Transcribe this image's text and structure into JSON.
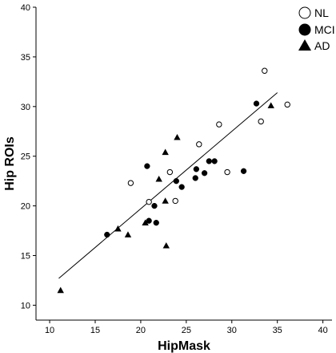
{
  "chart_data": {
    "type": "scatter",
    "title": "",
    "xlabel": "HipMask",
    "ylabel": "Hip ROIs",
    "xlim": [
      8.5,
      41
    ],
    "ylim": [
      8.5,
      40
    ],
    "xticks": [
      10,
      15,
      20,
      25,
      30,
      35,
      40
    ],
    "yticks": [
      10,
      15,
      20,
      25,
      30,
      35,
      40
    ],
    "grid": false,
    "legend": "top-right",
    "series": [
      {
        "name": "NL",
        "marker": "open-circle",
        "points": [
          [
            33.6,
            33.6
          ],
          [
            36.1,
            30.2
          ],
          [
            33.2,
            28.5
          ],
          [
            28.6,
            28.2
          ],
          [
            26.4,
            26.2
          ],
          [
            18.9,
            22.3
          ],
          [
            23.2,
            23.4
          ],
          [
            29.5,
            23.4
          ],
          [
            20.9,
            20.4
          ],
          [
            23.8,
            20.5
          ]
        ]
      },
      {
        "name": "MCI",
        "marker": "filled-circle",
        "points": [
          [
            32.7,
            30.3
          ],
          [
            20.7,
            24.0
          ],
          [
            26.1,
            23.7
          ],
          [
            27.5,
            24.5
          ],
          [
            28.1,
            24.5
          ],
          [
            27.0,
            23.3
          ],
          [
            31.3,
            23.5
          ],
          [
            26.0,
            22.8
          ],
          [
            23.9,
            22.5
          ],
          [
            24.5,
            21.9
          ],
          [
            21.5,
            20.0
          ],
          [
            21.7,
            18.3
          ],
          [
            20.9,
            18.5
          ],
          [
            16.3,
            17.1
          ]
        ]
      },
      {
        "name": "AD",
        "marker": "filled-triangle",
        "points": [
          [
            34.3,
            30.1
          ],
          [
            24.0,
            26.9
          ],
          [
            22.7,
            25.4
          ],
          [
            22.0,
            22.7
          ],
          [
            22.7,
            20.5
          ],
          [
            20.5,
            18.3
          ],
          [
            17.5,
            17.7
          ],
          [
            18.6,
            17.1
          ],
          [
            22.8,
            16.0
          ],
          [
            11.2,
            11.5
          ]
        ]
      }
    ],
    "fit_line": {
      "from": [
        11.0,
        12.7
      ],
      "to": [
        35.0,
        31.4
      ]
    }
  }
}
